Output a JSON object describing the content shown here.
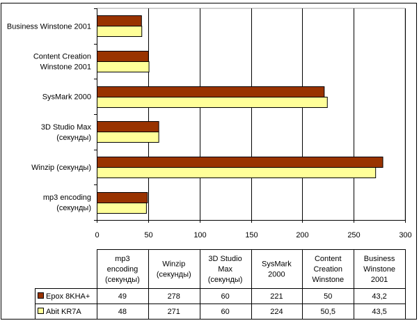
{
  "chart_data": {
    "type": "bar",
    "orientation": "horizontal",
    "categories": [
      "mp3 encoding (секунды)",
      "Winzip (секунды)",
      "3D Studio Max (секунды)",
      "SysMark 2000",
      "Content Creation Winstone 2001",
      "Business Winstone 2001"
    ],
    "axis_labels": [
      [
        "mp3 encoding",
        "(секунды)"
      ],
      [
        "Winzip (секунды)"
      ],
      [
        "3D Studio Max",
        "(секунды)"
      ],
      [
        "SysMark 2000"
      ],
      [
        "Content Creation",
        "Winstone 2001"
      ],
      [
        "Business Winstone 2001"
      ]
    ],
    "table_headers": [
      [
        "mp3",
        "encoding",
        "(секунды)"
      ],
      [
        "Winzip",
        "(секунды)"
      ],
      [
        "3D Studio",
        "Max",
        "(секунды)"
      ],
      [
        "SysMark",
        "2000"
      ],
      [
        "Content",
        "Creation",
        "Winstone"
      ],
      [
        "Business",
        "Winstone",
        "2001"
      ]
    ],
    "series": [
      {
        "name": "Epox 8KHA+",
        "color": "#993300",
        "values": [
          49,
          278,
          60,
          221,
          50,
          43.2
        ],
        "labels": [
          "49",
          "278",
          "60",
          "221",
          "50",
          "43,2"
        ]
      },
      {
        "name": "Abit KR7A",
        "color": "#FFFF99",
        "values": [
          48,
          271,
          60,
          224,
          50.5,
          43.5
        ],
        "labels": [
          "48",
          "271",
          "60",
          "224",
          "50,5",
          "43,5"
        ]
      }
    ],
    "xlim": [
      0,
      300
    ],
    "xticks": [
      "0",
      "50",
      "100",
      "150",
      "200",
      "250",
      "300"
    ],
    "grid": true,
    "legend": "data-table",
    "title": "",
    "xlabel": "",
    "ylabel": ""
  }
}
